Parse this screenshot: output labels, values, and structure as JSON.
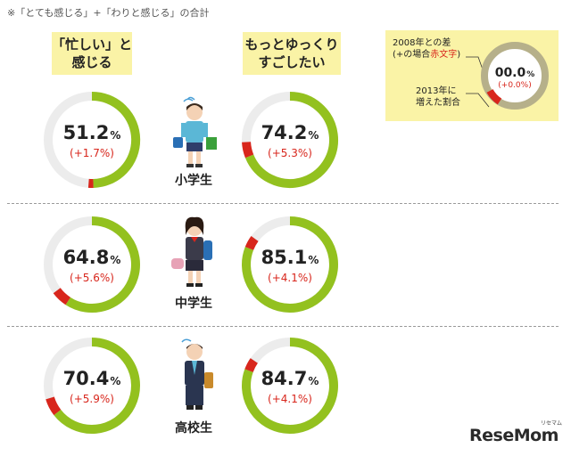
{
  "note": "※「とても感じる」+「わりと感じる」の合計",
  "headers": {
    "busy": [
      "「忙しい」と",
      "感じる"
    ],
    "relaxed": [
      "もっとゆっくり",
      "すごしたい"
    ]
  },
  "legend": {
    "line1": "2008年との差",
    "line2_pre": "(+の場合",
    "line2_red": "赤文字",
    "line2_post": ")",
    "line3": "2013年に",
    "line4": "増えた割合",
    "sample_pct": "00.0",
    "sample_unit": "%",
    "sample_diff": "(+0.0%)"
  },
  "logo": {
    "text": "ReseMom",
    "kana": "リセマム"
  },
  "colors": {
    "green": "#93c11f",
    "red": "#d8261c",
    "track": "#ececec",
    "highlight": "#faf3a6",
    "legend_ring": "#b6b08a"
  },
  "chart_data": {
    "type": "pie",
    "note": "※「とても感じる」+「わりと感じる」の合計",
    "categories": [
      "小学生",
      "中学生",
      "高校生"
    ],
    "unit": "%",
    "series": [
      {
        "name": "「忙しい」と感じる",
        "values": [
          51.2,
          64.8,
          70.4
        ],
        "change_labels": [
          "(+1.7%)",
          "(+5.6%)",
          "(+5.9%)"
        ],
        "change_values": [
          1.7,
          5.6,
          5.9
        ]
      },
      {
        "name": "もっとゆっくりすごしたい",
        "values": [
          74.2,
          85.1,
          84.7
        ],
        "change_labels": [
          "(+5.3%)",
          "(+4.1%)",
          "(+4.1%)"
        ],
        "change_values": [
          5.3,
          4.1,
          4.1
        ]
      }
    ]
  }
}
